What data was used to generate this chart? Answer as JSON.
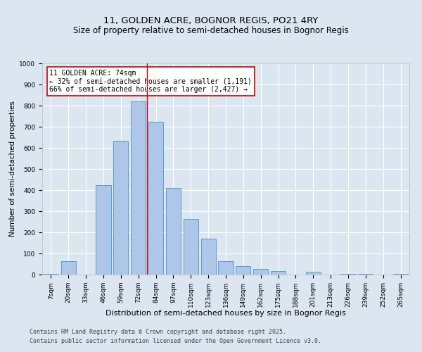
{
  "title": "11, GOLDEN ACRE, BOGNOR REGIS, PO21 4RY",
  "subtitle": "Size of property relative to semi-detached houses in Bognor Regis",
  "xlabel": "Distribution of semi-detached houses by size in Bognor Regis",
  "ylabel": "Number of semi-detached properties",
  "categories": [
    "7sqm",
    "20sqm",
    "33sqm",
    "46sqm",
    "59sqm",
    "72sqm",
    "84sqm",
    "97sqm",
    "110sqm",
    "123sqm",
    "136sqm",
    "149sqm",
    "162sqm",
    "175sqm",
    "188sqm",
    "201sqm",
    "213sqm",
    "226sqm",
    "239sqm",
    "252sqm",
    "265sqm"
  ],
  "values": [
    5,
    65,
    0,
    425,
    635,
    820,
    725,
    410,
    265,
    170,
    65,
    40,
    28,
    18,
    0,
    15,
    0,
    5,
    5,
    0,
    3
  ],
  "bar_color": "#aec6e8",
  "bar_edge_color": "#5b9bd5",
  "annotation_text": "11 GOLDEN ACRE: 74sqm\n← 32% of semi-detached houses are smaller (1,191)\n66% of semi-detached houses are larger (2,427) →",
  "annotation_box_color": "#ffffff",
  "annotation_box_edge_color": "#cc0000",
  "vline_color": "#cc0000",
  "vline_x": 5.5,
  "ylim": [
    0,
    1000
  ],
  "yticks": [
    0,
    100,
    200,
    300,
    400,
    500,
    600,
    700,
    800,
    900,
    1000
  ],
  "background_color": "#dce6f1",
  "plot_background_color": "#dce6f1",
  "footer_line1": "Contains HM Land Registry data © Crown copyright and database right 2025.",
  "footer_line2": "Contains public sector information licensed under the Open Government Licence v3.0.",
  "title_fontsize": 9.5,
  "subtitle_fontsize": 8.5,
  "xlabel_fontsize": 8,
  "ylabel_fontsize": 7.5,
  "tick_fontsize": 6.5,
  "annotation_fontsize": 7,
  "footer_fontsize": 6
}
